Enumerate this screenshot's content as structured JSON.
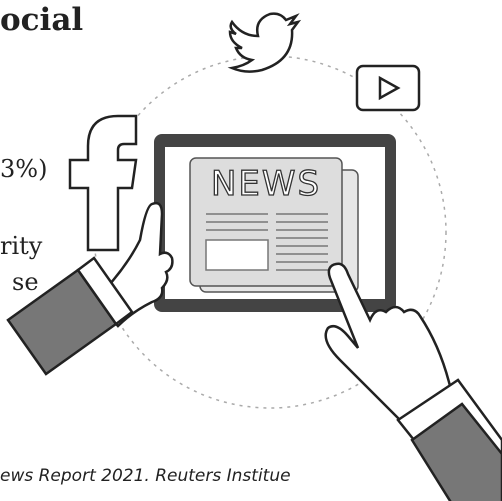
{
  "title": "ocial",
  "lines": [
    "3%)",
    "rity",
    "se"
  ],
  "footer": "ews Report 2021. Reuters Institue",
  "illustration": {
    "newspaper": "NEWS"
  }
}
